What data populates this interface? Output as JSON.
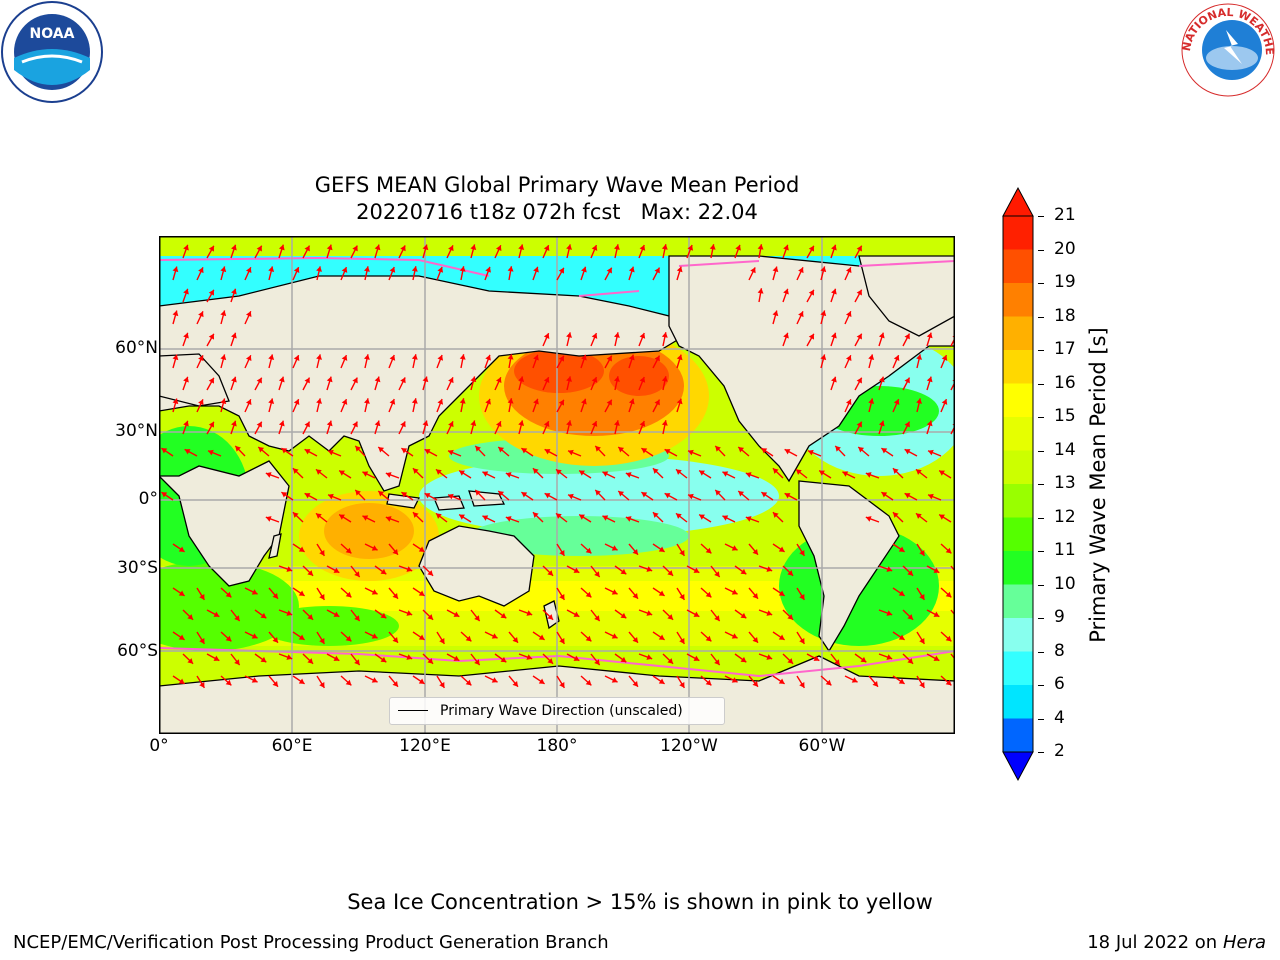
{
  "header": {
    "left_logo": {
      "icon": "noaa-logo-icon",
      "text": "NOAA"
    },
    "right_logo": {
      "icon": "nws-logo-icon",
      "text": "NATIONAL WEATHER SERVICE"
    }
  },
  "map": {
    "title_line1": "GEFS MEAN Global Primary Wave Mean Period",
    "title_line2": "20220716 t18z 072h fcst   Max: 22.04",
    "x_ticks": [
      "0°",
      "60°E",
      "120°E",
      "180°",
      "120°W",
      "60°W"
    ],
    "y_ticks": [
      "60°N",
      "30°N",
      "0°",
      "30°S",
      "60°S"
    ],
    "legend_label": "Primary Wave Direction (unscaled)",
    "arrow_color": "#ff0000",
    "land_color": "#efecdc"
  },
  "colorbar": {
    "label": "Primary Wave Mean Period [s]",
    "ticks": [
      "21",
      "20",
      "19",
      "18",
      "17",
      "16",
      "15",
      "14",
      "13",
      "12",
      "11",
      "10",
      "9",
      "8",
      "6",
      "4",
      "2"
    ],
    "colors": [
      "#ff2000",
      "#ff5000",
      "#ff8000",
      "#ffb000",
      "#ffd800",
      "#ffff00",
      "#e6ff00",
      "#ccff00",
      "#99ff00",
      "#55ff00",
      "#22ff22",
      "#66ff99",
      "#88ffee",
      "#33ffff",
      "#00e5ff",
      "#0066ff"
    ],
    "under_color": "#0000ff",
    "over_color": "#ff1a00"
  },
  "footer": {
    "sea_ice_note": "Sea Ice Concentration > 15% is shown in pink to yellow",
    "branch": "NCEP/EMC/Verification Post Processing Product Generation Branch",
    "date_prefix": "18 Jul 2022 on ",
    "machine": "Hera"
  }
}
